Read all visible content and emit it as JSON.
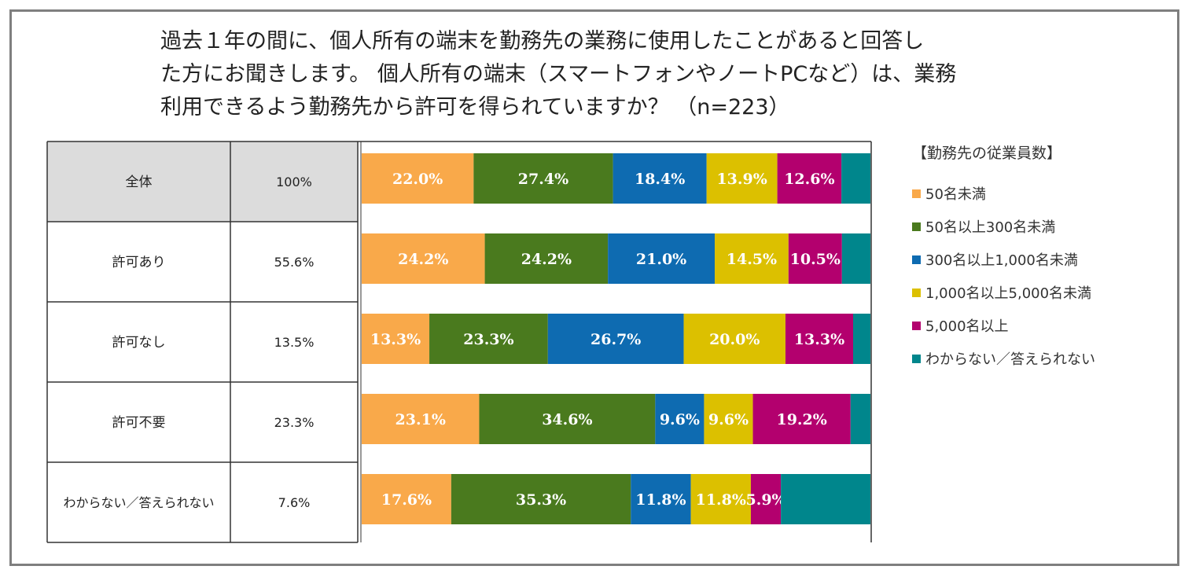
{
  "chart_data": {
    "type": "bar",
    "orientation": "horizontal",
    "stacked": true,
    "percent_stacked": true,
    "title": "過去１年の間に、個人所有の端末を勤務先の業務に使用したことがあると回答した方にお聞きします。 個人所有の端末（スマートフォンやノートPCなど）は、業務利用できるよう勤務先から許可を得られていますか？ （n=223）",
    "title_lines": [
      "過去１年の間に、個人所有の端末を勤務先の業務に使用したことがあると回答し",
      "た方にお聞きします。 個人所有の端末（スマートフォンやノートPCなど）は、業務",
      "利用できるよう勤務先から許可を得られていますか？ （n=223）"
    ],
    "legend_title": "【勤務先の従業員数】",
    "legend_position": "right",
    "categories": [
      "全体",
      "許可あり",
      "許可なし",
      "許可不要",
      "わからない／答えられない"
    ],
    "shares": [
      "100%",
      "55.6%",
      "13.5%",
      "23.3%",
      "7.6%"
    ],
    "series": [
      {
        "name": "50名未満",
        "color": "#f9a94a",
        "values": [
          22.0,
          24.2,
          13.3,
          23.1,
          17.6
        ],
        "labels": [
          "22.0%",
          "24.2%",
          "13.3%",
          "23.1%",
          "17.6%"
        ]
      },
      {
        "name": "50名以上300名未満",
        "color": "#4a7a1e",
        "values": [
          27.4,
          24.2,
          23.3,
          34.6,
          35.3
        ],
        "labels": [
          "27.4%",
          "24.2%",
          "23.3%",
          "34.6%",
          "35.3%"
        ]
      },
      {
        "name": "300名以上1,000名未満",
        "color": "#0e6bb1",
        "values": [
          18.4,
          21.0,
          26.7,
          9.6,
          11.8
        ],
        "labels": [
          "18.4%",
          "21.0%",
          "26.7%",
          "9.6%",
          "11.8%"
        ]
      },
      {
        "name": "1,000名以上5,000名未満",
        "color": "#dcc000",
        "values": [
          13.9,
          14.5,
          20.0,
          9.6,
          11.8
        ],
        "labels": [
          "13.9%",
          "14.5%",
          "20.0%",
          "9.6%",
          "11.8%"
        ]
      },
      {
        "name": "5,000名以上",
        "color": "#b3006e",
        "values": [
          12.6,
          10.5,
          13.3,
          19.2,
          5.9
        ],
        "labels": [
          "12.6%",
          "10.5%",
          "13.3%",
          "19.2%",
          "5.9%"
        ]
      },
      {
        "name": "わからない／答えられない",
        "color": "#00868c",
        "values": [
          5.7,
          5.6,
          3.4,
          3.9,
          17.6
        ],
        "labels": [
          "",
          "",
          "",
          "",
          ""
        ]
      }
    ],
    "xlim": [
      0,
      100
    ],
    "grid": false
  }
}
